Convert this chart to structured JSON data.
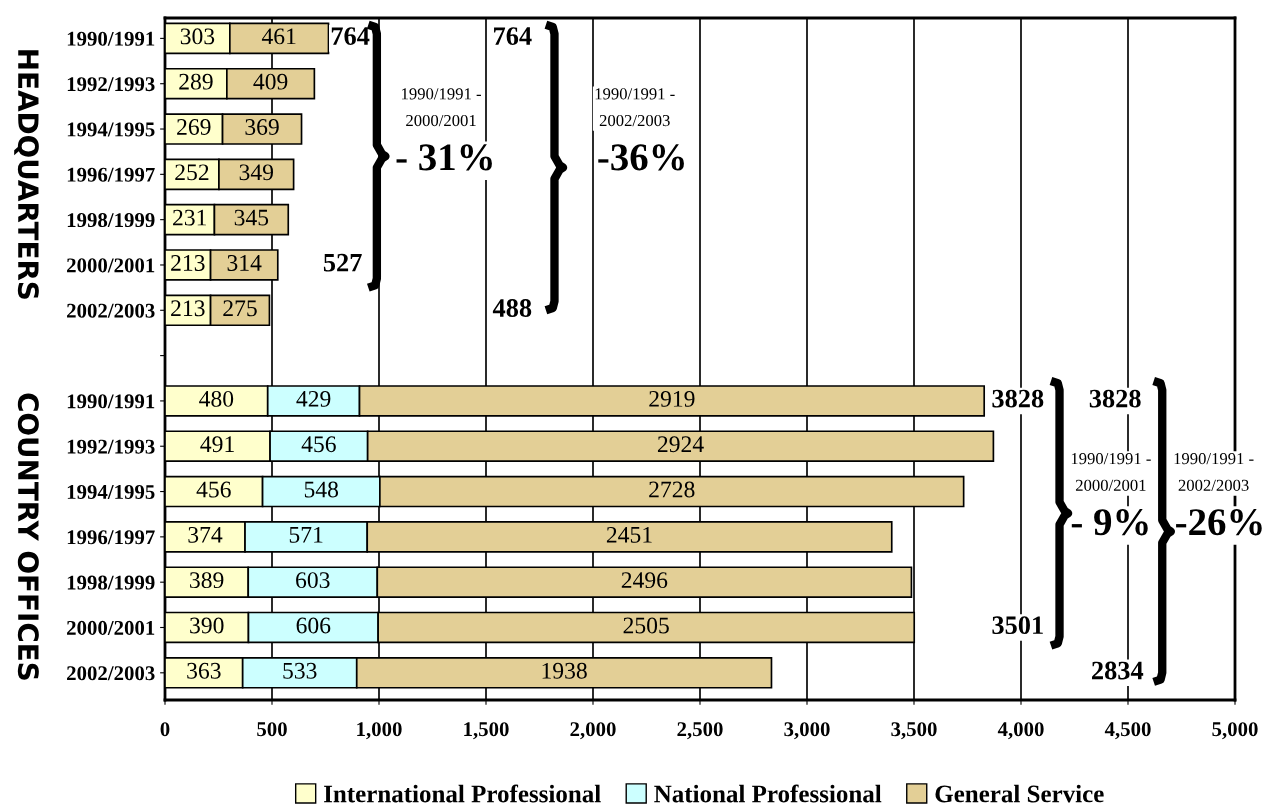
{
  "chart_data": {
    "type": "bar",
    "orientation": "horizontal",
    "stacked": true,
    "categories": [
      "1990/1991",
      "1992/1993",
      "1994/1995",
      "1996/1997",
      "1998/1999",
      "2000/2001",
      "2002/2003",
      null,
      "1990/1991",
      "1992/1993",
      "1994/1995",
      "1996/1997",
      "1998/1999",
      "2000/2001",
      "2002/2003"
    ],
    "series": [
      {
        "name": "International Professional",
        "color": "#ffffcc",
        "values": [
          303,
          289,
          269,
          252,
          231,
          213,
          213,
          null,
          480,
          491,
          456,
          374,
          389,
          390,
          363
        ]
      },
      {
        "name": "National Professional",
        "color": "#ccffff",
        "values": [
          null,
          null,
          null,
          null,
          null,
          null,
          null,
          null,
          429,
          456,
          548,
          571,
          603,
          606,
          533
        ]
      },
      {
        "name": "General Service",
        "color": "#e3cf96",
        "values": [
          461,
          409,
          369,
          349,
          345,
          314,
          275,
          null,
          2919,
          2924,
          2728,
          2451,
          2496,
          2505,
          1938
        ]
      }
    ],
    "data_labels": true,
    "xlim": [
      0,
      5000
    ],
    "xticks": [
      0,
      500,
      {
        "value": 1000,
        "label": "1,000"
      },
      {
        "value": 1500,
        "label": "1,500"
      },
      {
        "value": 2000,
        "label": "2,000"
      },
      {
        "value": 2500,
        "label": "2,500"
      },
      {
        "value": 3000,
        "label": "3,000"
      },
      {
        "value": 3500,
        "label": "3,500"
      },
      {
        "value": 4000,
        "label": "4,000"
      },
      {
        "value": 4500,
        "label": "4,500"
      },
      {
        "value": 5000,
        "label": "5,000"
      }
    ],
    "grid": "x",
    "legend": "bottom",
    "annotations": [
      "HEADQUARTERS",
      "COUNTRY OFFICES",
      "764",
      "527",
      "1990/1991 -\n2000/2001",
      "- 31%",
      "764",
      "488",
      "1990/1991 -\n2002/2003",
      "-36%",
      "3828",
      "3501",
      "1990/1991 -\n2000/2001",
      "- 9%",
      "3828",
      "2834",
      "1990/1991 -\n2002/2003",
      "-26%"
    ]
  }
}
